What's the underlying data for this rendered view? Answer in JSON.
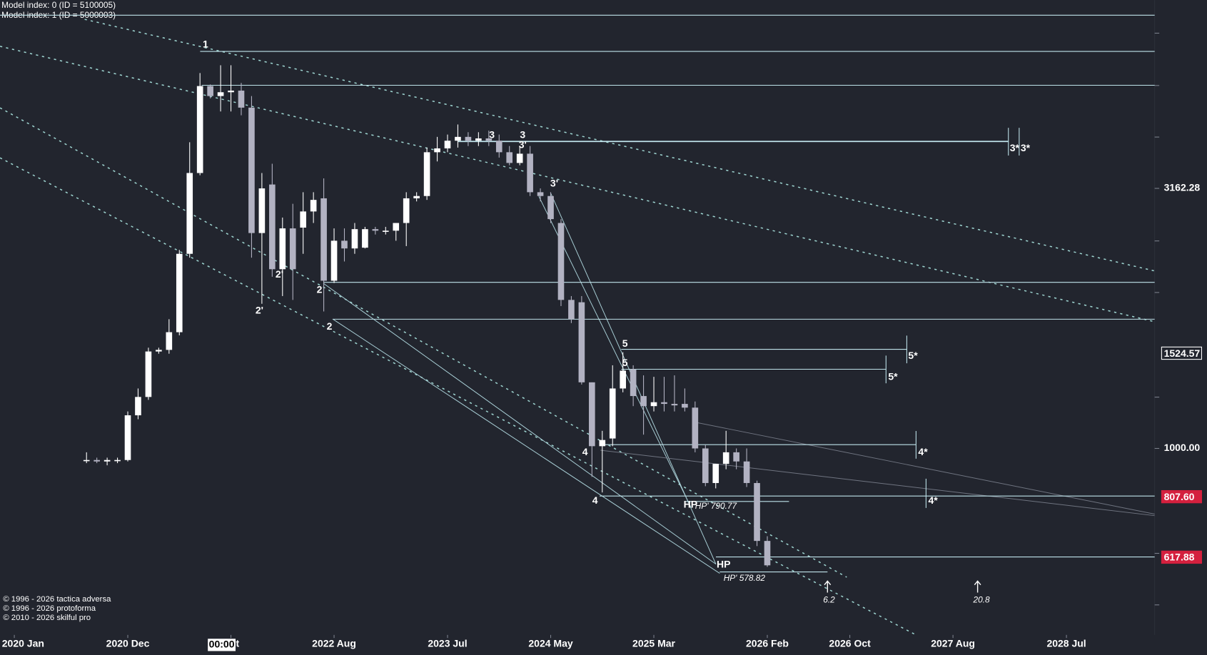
{
  "chart_data": {
    "type": "candlestick",
    "log_scale": true,
    "up_color": "#ffffff",
    "down_color": "#b2b2c2",
    "level_color": "#bfe3ea",
    "model_labels": [
      "Model index: 0  (ID = 5100005)",
      "Model index: 1  (ID = 5000003)"
    ],
    "copyright": [
      "© 1996 - 2026 tactica adversa",
      "© 1996 - 2026 protoforma",
      "© 2010 - 2026 skilful pro"
    ],
    "cursor_time": "00:00",
    "x": [
      "2020-08",
      "2020-09",
      "2020-10",
      "2020-11",
      "2020-12",
      "2021-01",
      "2021-02",
      "2021-03",
      "2021-04",
      "2021-05",
      "2021-06",
      "2021-07",
      "2021-08",
      "2021-09",
      "2021-10",
      "2021-11",
      "2021-12",
      "2022-01",
      "2022-02",
      "2022-03",
      "2022-04",
      "2022-05",
      "2022-06",
      "2022-07",
      "2022-08",
      "2022-09",
      "2022-10",
      "2022-11",
      "2022-12",
      "2023-01",
      "2023-02",
      "2023-03",
      "2023-04",
      "2023-05",
      "2023-06",
      "2023-07",
      "2023-08",
      "2023-09",
      "2023-10",
      "2023-11",
      "2023-12",
      "2024-01",
      "2024-02",
      "2024-03",
      "2024-04",
      "2024-05",
      "2024-06",
      "2024-07",
      "2024-08",
      "2024-09",
      "2024-10",
      "2024-11",
      "2024-12",
      "2025-01",
      "2025-02",
      "2025-03",
      "2025-04",
      "2025-05",
      "2025-06",
      "2025-07",
      "2025-08",
      "2025-09",
      "2025-10",
      "2025-11",
      "2025-12",
      "2026-01",
      "2026-02"
    ],
    "open": [
      950,
      950,
      944,
      950,
      950,
      1158,
      1256,
      1536,
      1547,
      1673,
      2367,
      3385,
      4974,
      4759,
      4840,
      4875,
      4521,
      2595,
      3217,
      2211,
      2649,
      2658,
      2855,
      3026,
      2101,
      2508,
      2424,
      2432,
      2640,
      2622,
      2622,
      2713,
      3026,
      3057,
      3711,
      3775,
      3905,
      3972,
      3905,
      3945,
      3905,
      3711,
      3539,
      3687,
      3109,
      3057,
      2713,
      1930,
      1910,
      1340,
      1010,
      1045,
      1304,
      1420,
      1261,
      1206,
      1227,
      1218,
      1218,
      1198,
      1000,
      858,
      934,
      983,
      944,
      858,
      664
    ],
    "high": [
      983,
      960,
      960,
      960,
      1178,
      1304,
      1562,
      1562,
      1772,
      2408,
      3879,
      5270,
      5010,
      5454,
      5454,
      5044,
      4759,
      3385,
      3526,
      2779,
      2954,
      3109,
      3109,
      3305,
      2649,
      2649,
      2713,
      2667,
      2667,
      2667,
      2713,
      3109,
      3109,
      3788,
      3972,
      4013,
      4196,
      4055,
      4055,
      4083,
      4013,
      3814,
      3814,
      3814,
      3162,
      3109,
      2760,
      1963,
      1963,
      1340,
      1081,
      1445,
      1531,
      1445,
      1382,
      1373,
      1373,
      1382,
      1304,
      1231,
      1017,
      934,
      1081,
      1000,
      1000,
      867,
      678
    ],
    "low": [
      937,
      937,
      928,
      937,
      944,
      1138,
      1240,
      1521,
      1521,
      1650,
      2327,
      3351,
      4711,
      4445,
      4445,
      4370,
      2327,
      1897,
      2138,
      1963,
      1930,
      2367,
      2713,
      1834,
      2080,
      2288,
      2367,
      2424,
      2578,
      2578,
      2508,
      2449,
      2985,
      3005,
      3563,
      3711,
      3788,
      3814,
      3814,
      3814,
      3624,
      3503,
      3503,
      3057,
      2985,
      2713,
      1878,
      1742,
      1327,
      882,
      823,
      1010,
      1282,
      1206,
      1063,
      1178,
      1178,
      1178,
      1178,
      983,
      846,
      838,
      912,
      912,
      843,
      649,
      592
    ],
    "close": [
      950,
      944,
      950,
      950,
      1158,
      1256,
      1536,
      1547,
      1673,
      2367,
      3385,
      4974,
      4759,
      4840,
      4875,
      4521,
      2595,
      3162,
      2211,
      2649,
      2211,
      2855,
      3005,
      2101,
      2508,
      2424,
      2640,
      2640,
      2622,
      2622,
      2713,
      3026,
      3057,
      3711,
      3775,
      3905,
      3972,
      3905,
      3945,
      3905,
      3711,
      3539,
      3687,
      3109,
      3057,
      2760,
      1930,
      1772,
      1340,
      1010,
      1038,
      1304,
      1411,
      1261,
      1206,
      1227,
      1218,
      1210,
      1198,
      1000,
      858,
      934,
      983,
      944,
      858,
      664,
      596
    ],
    "ylim": [
      438,
      7278
    ],
    "yticks": [
      3162.28,
      {
        "value": 1000,
        "label": "1000.00"
      }
    ],
    "price_tags": [
      {
        "value": 1524.57,
        "color": "#ffffff"
      },
      {
        "value": 807.6,
        "label": "807.60",
        "color": "#d4203e"
      },
      {
        "value": 617.88,
        "color": "#d4203e"
      }
    ],
    "xticks": [
      {
        "value": "2020-01",
        "label": "2020 Jan"
      },
      {
        "value": "2020-12",
        "label": "2020 Dec"
      },
      {
        "value": "2021-10",
        "label": "Oct"
      },
      {
        "value": "2022-08",
        "label": "2022 Aug"
      },
      {
        "value": "2023-07",
        "label": "2023 Jul"
      },
      {
        "value": "2024-05",
        "label": "2024 May"
      },
      {
        "value": "2025-03",
        "label": "2025 Mar"
      },
      {
        "value": "2026-02",
        "label": "2026 Feb"
      },
      {
        "value": "2026-10",
        "label": "2026 Oct"
      },
      {
        "value": "2027-08",
        "label": "2027 Aug"
      },
      {
        "value": "2028-07",
        "label": "2028 Jul"
      }
    ],
    "levels": [
      6806,
      5799,
      4992,
      3892,
      2086,
      1772,
      1551,
      1420,
      1017,
      810,
      618.6,
      790.77,
      578.82
    ],
    "annotations": [
      "1",
      "2'",
      "2'",
      "2",
      "2",
      "3",
      "3",
      "3'",
      "3'",
      "3*",
      "3*",
      "5",
      "5",
      "5*",
      "5*",
      "4",
      "4",
      "4*",
      "4*",
      "HP",
      "HP' 790.77",
      "HP",
      "HP' 578.82",
      "6.2",
      "20.8"
    ]
  }
}
